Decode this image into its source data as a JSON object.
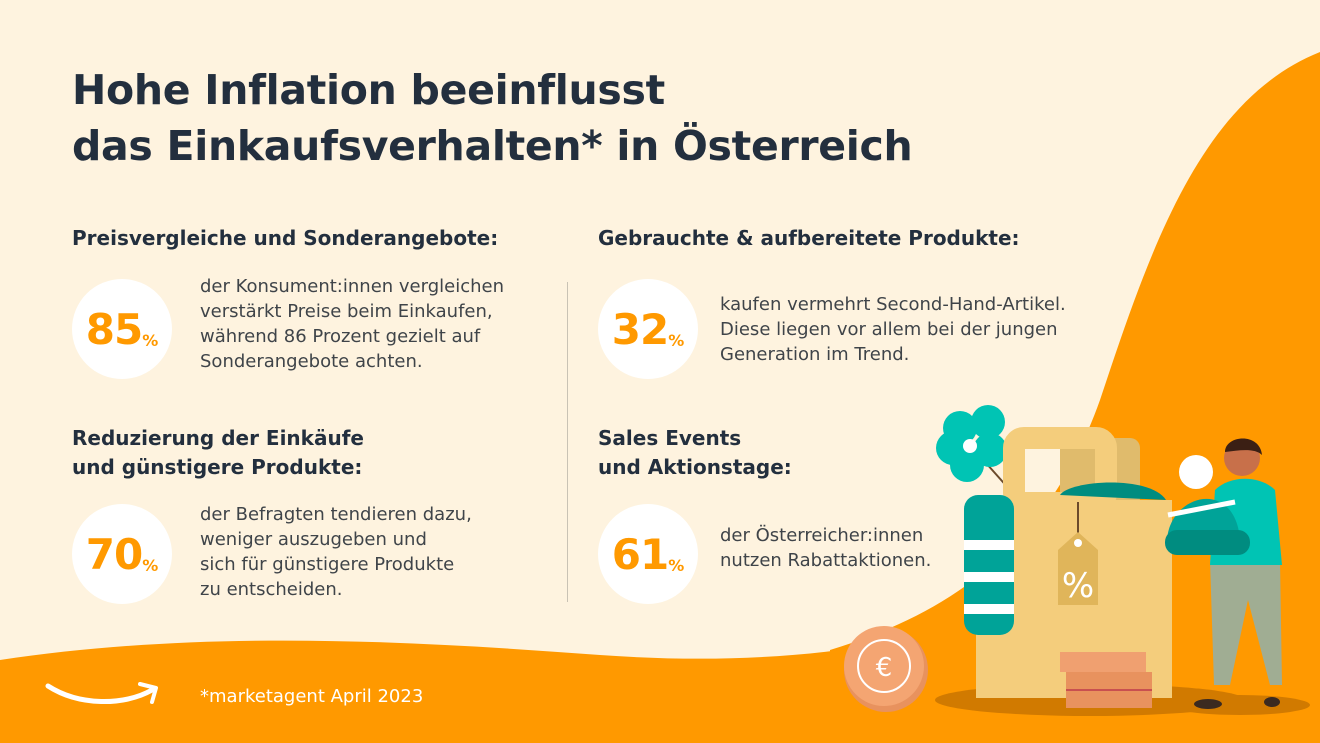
{
  "title": {
    "line1": "Hohe Inflation beeinflusst",
    "line2": "das Einkaufsverhalten* in Österreich"
  },
  "colors": {
    "background": "#fef3df",
    "accent": "#ff9900",
    "text": "#232f3e",
    "teal": "#00a398"
  },
  "sections": [
    {
      "heading1": "Preisvergleiche und Sonderangebote:",
      "value": "85",
      "unit": "%",
      "text": [
        "der Konsument:innen vergleichen",
        "verstärkt Preise beim Einkaufen,",
        "während 86 Prozent gezielt auf",
        "Sonderangebote achten."
      ]
    },
    {
      "heading1": "Gebrauchte & aufbereitete Produkte:",
      "value": "32",
      "unit": "%",
      "text": [
        "kaufen vermehrt Second-Hand-Artikel.",
        "Diese liegen vor allem bei der jungen",
        "Generation im Trend."
      ]
    },
    {
      "heading1": "Reduzierung der Einkäufe",
      "heading2": "und günstigere Produkte:",
      "value": "70",
      "unit": "%",
      "text": [
        "der Befragten tendieren dazu,",
        "weniger auszugeben und",
        "sich für günstigere Produkte",
        "zu entscheiden."
      ]
    },
    {
      "heading1": "Sales Events",
      "heading2": "und Aktionstage:",
      "value": "61",
      "unit": "%",
      "text": [
        "der Österreicher:innen",
        "nutzen Rabattaktionen."
      ]
    }
  ],
  "footer": {
    "source": "*marketagent April 2023",
    "logo": "amazon-smile-logo"
  },
  "illustration": {
    "icons": [
      "flower-icon",
      "shopping-bag-icon",
      "percent-tag-icon",
      "scarf-icon",
      "beanie-icon",
      "person-icon",
      "euro-coin-icon",
      "coin-stack-icon"
    ]
  }
}
